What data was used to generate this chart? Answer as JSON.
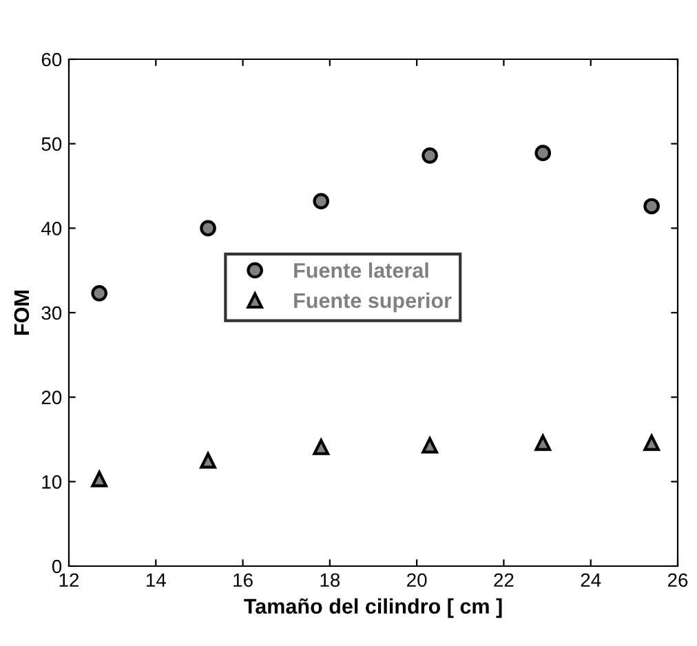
{
  "chart_data": {
    "type": "scatter",
    "xlabel": "Tamaño del cilindro [ cm ]",
    "ylabel": "FOM",
    "x": [
      12.7,
      15.2,
      17.8,
      20.3,
      22.9,
      25.4
    ],
    "series": [
      {
        "name": "Fuente lateral",
        "color": "#808080",
        "marker": "circle",
        "values": [
          32.3,
          40.0,
          43.2,
          48.6,
          48.9,
          42.6
        ]
      },
      {
        "name": "Fuente superior",
        "color": "#808080",
        "marker": "triangle",
        "values": [
          10.3,
          12.5,
          14.1,
          14.3,
          14.6,
          14.6
        ]
      }
    ],
    "xlim": [
      12,
      26
    ],
    "xticks": [
      12,
      14,
      16,
      18,
      20,
      22,
      24,
      26
    ],
    "ylim": [
      0,
      60
    ],
    "yticks": [
      0,
      10,
      20,
      30,
      40,
      50,
      60
    ],
    "grid": false,
    "legend": "center"
  }
}
